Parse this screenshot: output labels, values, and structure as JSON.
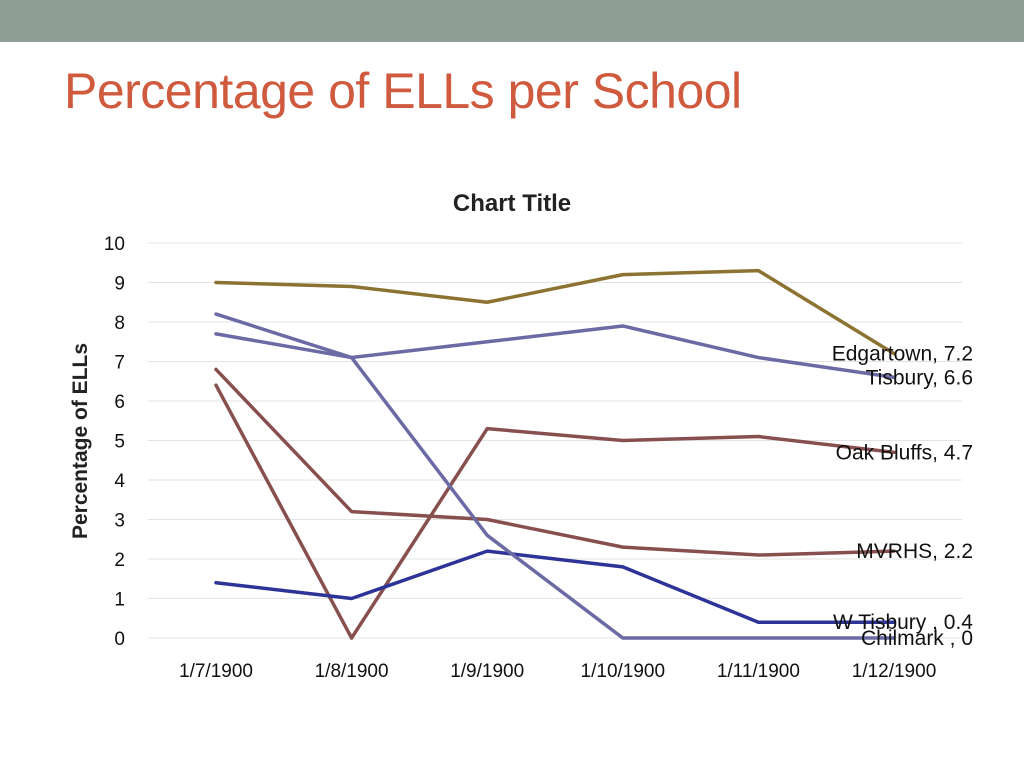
{
  "slide": {
    "title": "Percentage of ELLs per School",
    "title_color": "#cf5a3e",
    "top_bar_color": "#909e98"
  },
  "chart_data": {
    "type": "line",
    "title": "Chart Title",
    "xlabel": "",
    "ylabel": "Percentage of ELLs",
    "ylim": [
      0,
      10
    ],
    "yticks": [
      0,
      1,
      2,
      3,
      4,
      5,
      6,
      7,
      8,
      9,
      10
    ],
    "grid": true,
    "categories": [
      "1/7/1900",
      "1/8/1900",
      "1/9/1900",
      "1/10/1900",
      "1/11/1900",
      "1/12/1900"
    ],
    "series": [
      {
        "name": "Edgartown",
        "color": "#8c7332",
        "values": [
          9.0,
          8.9,
          8.5,
          9.2,
          9.3,
          7.2
        ],
        "data_label": "Edgartown, 7.2"
      },
      {
        "name": "Tisbury",
        "color": "#6a6aa4",
        "values": [
          7.7,
          7.1,
          7.5,
          7.9,
          7.1,
          6.6
        ],
        "data_label": "Tisbury, 6.6"
      },
      {
        "name": "Oak Bluffs",
        "color": "#87504e",
        "values": [
          6.4,
          0,
          5.3,
          5.0,
          5.1,
          4.7
        ],
        "data_label": "Oak Bluffs, 4.7"
      },
      {
        "name": "MVRHS",
        "color": "#87504e",
        "values": [
          6.8,
          3.2,
          3.0,
          2.3,
          2.1,
          2.2
        ],
        "data_label": "MVRHS, 2.2"
      },
      {
        "name": "W Tisbury",
        "color": "#2e3497",
        "values": [
          1.4,
          1.0,
          2.2,
          1.8,
          0.4,
          0.4
        ],
        "data_label": "W Tisbury , 0.4"
      },
      {
        "name": "Chilmark",
        "color": "#6a6aa4",
        "values": [
          8.2,
          7.1,
          2.6,
          0,
          0,
          0
        ],
        "data_label": "Chilmark , 0"
      }
    ]
  }
}
